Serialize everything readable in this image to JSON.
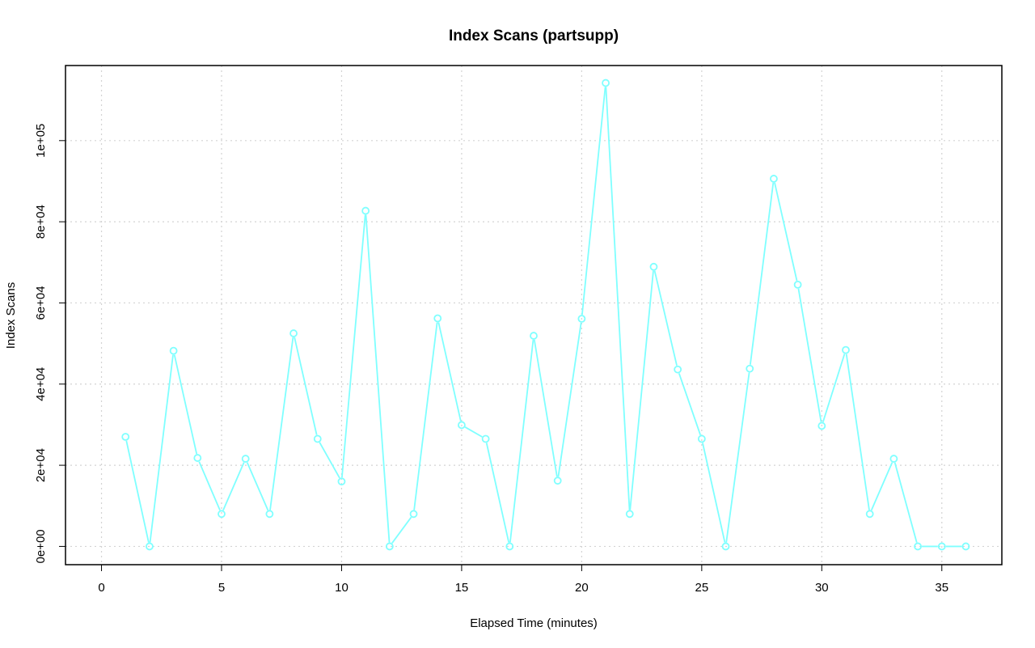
{
  "chart_data": {
    "type": "line",
    "title": "Index Scans (partsupp)",
    "xlabel": "Elapsed Time (minutes)",
    "ylabel": "Index Scans",
    "xlim": [
      -1.5,
      37.5
    ],
    "ylim": [
      -4500,
      118500
    ],
    "x_ticks": [
      0,
      5,
      10,
      15,
      20,
      25,
      30,
      35
    ],
    "x_tick_labels": [
      "0",
      "5",
      "10",
      "15",
      "20",
      "25",
      "30",
      "35"
    ],
    "y_ticks": [
      0,
      20000,
      40000,
      60000,
      80000,
      100000
    ],
    "y_tick_labels": [
      "0e+00",
      "2e+04",
      "4e+04",
      "6e+04",
      "8e+04",
      "1e+05"
    ],
    "grid": true,
    "legend": "none",
    "series": [
      {
        "color": "#7fffff",
        "marker": "open-circle",
        "x": [
          1,
          2,
          3,
          4,
          5,
          6,
          7,
          8,
          9,
          10,
          11,
          12,
          13,
          14,
          15,
          16,
          17,
          18,
          19,
          20,
          21,
          22,
          23,
          24,
          25,
          26,
          27,
          28,
          29,
          30,
          31,
          32,
          33,
          34,
          35,
          36
        ],
        "y": [
          27000,
          0,
          48200,
          21800,
          8000,
          21600,
          8000,
          52500,
          26500,
          16000,
          82700,
          0,
          8000,
          56200,
          29900,
          26500,
          0,
          51900,
          16200,
          56100,
          114200,
          8000,
          68900,
          43600,
          26500,
          0,
          43800,
          90600,
          64500,
          29700,
          48400,
          8000,
          21600,
          0,
          0,
          0
        ]
      }
    ]
  }
}
